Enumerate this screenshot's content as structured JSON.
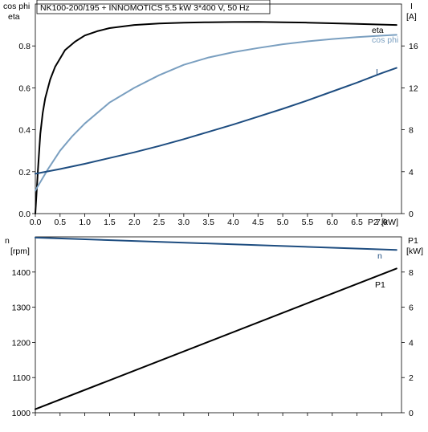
{
  "title": "NK100-200/195 + INNOMOTICS   5.5 kW   3*400 V, 50 Hz",
  "colors": {
    "eta": "#000000",
    "cosphi": "#7a9fc0",
    "current": "#1e4d80",
    "speed": "#1e4d80",
    "power": "#000000",
    "grid": "#000000",
    "text": "#000000"
  },
  "chart_data": [
    {
      "type": "line",
      "name": "top",
      "left_axis": {
        "label_line1": "cos phi",
        "label_line2": "eta",
        "ylim": [
          0,
          1.0
        ]
      },
      "right_axis": {
        "label_line1": "I",
        "label_line2": "[A]",
        "ylim": [
          0,
          20
        ]
      },
      "x_axis": {
        "xlim": [
          0,
          7.4
        ],
        "label_p2": "P2",
        "label_unit": "[kW]"
      },
      "left_ticks": [
        "0.0",
        "0.2",
        "0.4",
        "0.6",
        "0.8"
      ],
      "left_tick_values": [
        0,
        0.2,
        0.4,
        0.6,
        0.8
      ],
      "right_ticks": [
        "0",
        "4",
        "8",
        "12",
        "16"
      ],
      "right_tick_values": [
        0,
        4,
        8,
        12,
        16
      ],
      "x_ticks": [
        "0.0",
        "0.5",
        "1.0",
        "1.5",
        "2.0",
        "2.5",
        "3.0",
        "3.5",
        "4.0",
        "4.5",
        "5.0",
        "5.5",
        "6.0",
        "6.5",
        "7.0"
      ],
      "x_tick_values": [
        0,
        0.5,
        1.0,
        1.5,
        2.0,
        2.5,
        3.0,
        3.5,
        4.0,
        4.5,
        5.0,
        5.5,
        6.0,
        6.5,
        7.0
      ],
      "series": [
        {
          "name": "eta",
          "axis": "left",
          "color_key": "eta",
          "label": "eta",
          "x": [
            0,
            0.05,
            0.1,
            0.15,
            0.2,
            0.3,
            0.4,
            0.5,
            0.6,
            0.8,
            1.0,
            1.25,
            1.5,
            2.0,
            2.5,
            3.0,
            3.5,
            4.0,
            4.5,
            5.0,
            5.5,
            6.0,
            6.5,
            7.0,
            7.3
          ],
          "y": [
            0,
            0.2,
            0.38,
            0.48,
            0.55,
            0.64,
            0.7,
            0.74,
            0.78,
            0.82,
            0.85,
            0.87,
            0.885,
            0.9,
            0.907,
            0.911,
            0.913,
            0.914,
            0.915,
            0.913,
            0.911,
            0.908,
            0.905,
            0.902,
            0.9
          ]
        },
        {
          "name": "cos phi",
          "axis": "left",
          "color_key": "cosphi",
          "label": "cos phi",
          "x": [
            0,
            0.1,
            0.25,
            0.5,
            0.75,
            1.0,
            1.5,
            2.0,
            2.5,
            3.0,
            3.5,
            4.0,
            4.5,
            5.0,
            5.5,
            6.0,
            6.5,
            7.0,
            7.3
          ],
          "y": [
            0.11,
            0.15,
            0.21,
            0.3,
            0.37,
            0.43,
            0.53,
            0.6,
            0.66,
            0.71,
            0.745,
            0.77,
            0.79,
            0.808,
            0.822,
            0.833,
            0.842,
            0.849,
            0.853
          ]
        },
        {
          "name": "I",
          "axis": "right",
          "color_key": "current",
          "label": "I",
          "x": [
            0,
            0.5,
            1.0,
            1.5,
            2.0,
            2.5,
            3.0,
            3.5,
            4.0,
            4.5,
            5.0,
            5.5,
            6.0,
            6.5,
            7.0,
            7.3
          ],
          "y": [
            3.8,
            4.25,
            4.75,
            5.3,
            5.85,
            6.45,
            7.1,
            7.8,
            8.5,
            9.25,
            10.0,
            10.8,
            11.65,
            12.5,
            13.4,
            13.9
          ]
        }
      ]
    },
    {
      "type": "line",
      "name": "bottom",
      "left_axis": {
        "label_line1": "n",
        "label_line2": "[rpm]",
        "ylim": [
          1000,
          1500
        ]
      },
      "right_axis": {
        "label_line1": "P1",
        "label_line2": "[kW]",
        "ylim": [
          0,
          10
        ]
      },
      "x_axis": {
        "xlim": [
          0,
          7.4
        ]
      },
      "left_ticks": [
        "1000",
        "1100",
        "1200",
        "1300",
        "1400"
      ],
      "left_tick_values": [
        1000,
        1100,
        1200,
        1300,
        1400
      ],
      "right_ticks": [
        "0",
        "2",
        "4",
        "6",
        "8"
      ],
      "right_tick_values": [
        0,
        2,
        4,
        6,
        8
      ],
      "x_tick_values": [
        0,
        0.5,
        1.0,
        1.5,
        2.0,
        2.5,
        3.0,
        3.5,
        4.0,
        4.5,
        5.0,
        5.5,
        6.0,
        6.5,
        7.0
      ],
      "series": [
        {
          "name": "n",
          "axis": "left",
          "color_key": "speed",
          "label": "n",
          "x": [
            0,
            7.3
          ],
          "y": [
            1498,
            1463
          ]
        },
        {
          "name": "P1",
          "axis": "right",
          "color_key": "power",
          "label": "P1",
          "x": [
            0,
            7.3
          ],
          "y": [
            0.2,
            8.2
          ]
        }
      ]
    }
  ]
}
